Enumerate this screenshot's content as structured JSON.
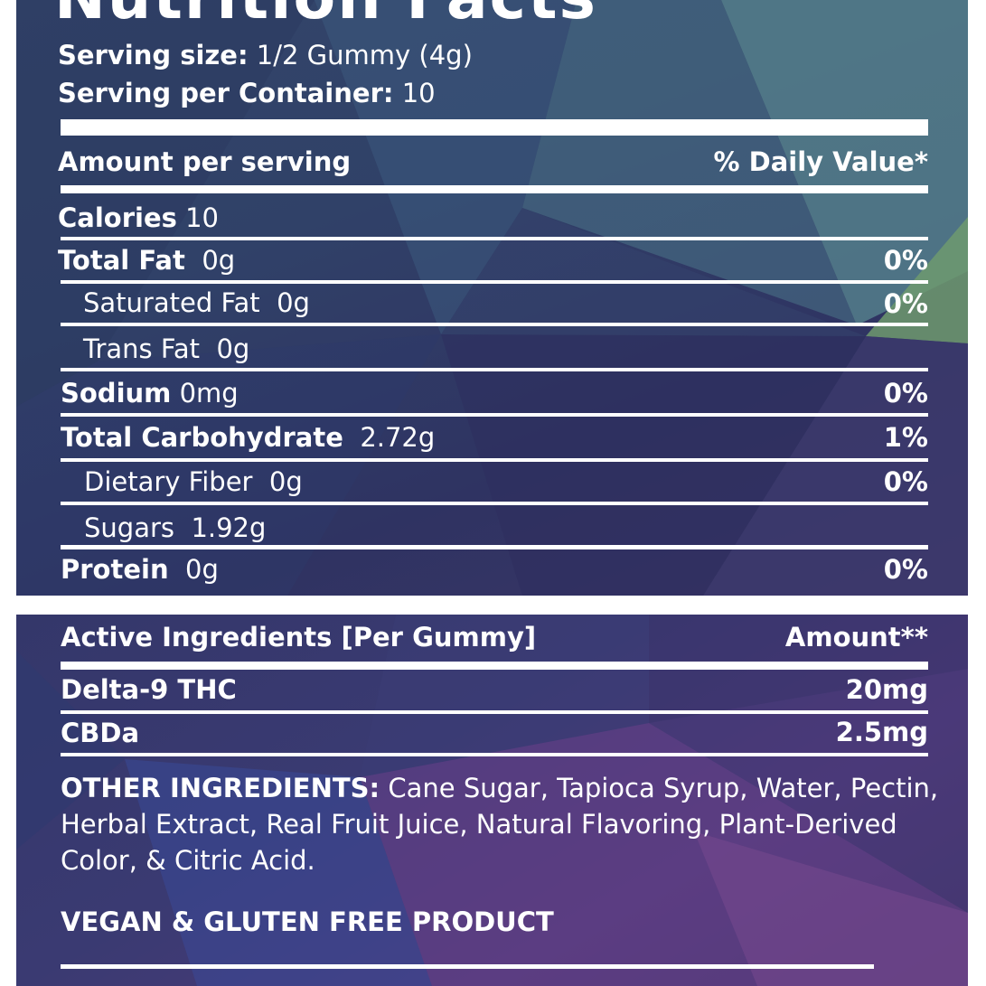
{
  "label": {
    "title": "Nutrition Facts",
    "serving_size_label": "Serving size:",
    "serving_size_value": "1/2 Gummy (4g)",
    "servings_label": "Serving per Container:",
    "servings_value": "10",
    "amount_header": "Amount per serving",
    "dv_header": "% Daily Value*",
    "calories_label": "Calories",
    "calories_value": "10",
    "nutrients": [
      {
        "name": "Total Fat",
        "amount": "0g",
        "dv": "0%"
      },
      {
        "name": "Saturated Fat",
        "amount": "0g",
        "dv": "0%"
      },
      {
        "name": "Trans Fat",
        "amount": "0g",
        "dv": ""
      },
      {
        "name": "Sodium",
        "amount": "0mg",
        "dv": "0%"
      },
      {
        "name": "Total Carbohydrate",
        "amount": "2.72g",
        "dv": "1%"
      },
      {
        "name": "Dietary Fiber",
        "amount": "0g",
        "dv": "0%"
      },
      {
        "name": "Sugars",
        "amount": "1.92g",
        "dv": ""
      },
      {
        "name": "Protein",
        "amount": "0g",
        "dv": "0%"
      }
    ]
  },
  "actives": {
    "header": "Active Ingredients [Per Gummy]",
    "amount_header": "Amount**",
    "items": [
      {
        "name": "Delta-9 THC",
        "amount": "20mg"
      },
      {
        "name": "CBDa",
        "amount": "2.5mg"
      }
    ],
    "other_label": "OTHER INGREDIENTS:",
    "other_text": "Cane Sugar, Tapioca Syrup, Water, Pectin, Herbal Extract, Real Fruit Juice, Natural Flavoring, Plant-Derived Color, & Citric Acid.",
    "vegan_note": "VEGAN & GLUTEN FREE PRODUCT"
  },
  "colors": {
    "panel_top": "#33456a",
    "panel_bottom": "#3a3a72",
    "text": "#ffffff",
    "page_background": "#ffffff"
  }
}
